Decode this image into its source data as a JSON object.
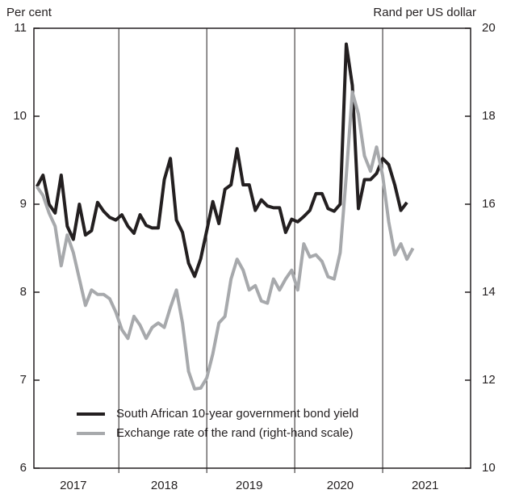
{
  "chart_data": {
    "type": "line",
    "y_label": "Per cent",
    "y2_label": "Rand per US dollar",
    "categories": [
      null,
      null,
      null,
      null,
      null,
      null,
      "2017",
      null,
      null,
      null,
      null,
      null,
      null,
      null,
      null,
      null,
      null,
      null,
      null,
      null,
      null,
      "2018",
      null,
      null,
      null,
      null,
      null,
      null,
      null,
      null,
      null,
      null,
      null,
      null,
      null,
      "2019",
      null,
      null,
      null,
      null,
      null,
      null,
      null,
      null,
      null,
      null,
      null,
      null,
      null,
      null,
      "2020",
      null,
      null,
      null,
      null,
      null,
      null,
      null,
      null,
      null,
      null,
      null,
      null,
      null,
      "2021",
      null,
      null,
      null,
      null,
      null,
      null,
      null
    ],
    "ylim": [
      6,
      11
    ],
    "yticks": [
      6,
      7,
      8,
      9,
      10,
      11
    ],
    "y2lim": [
      10,
      20
    ],
    "y2ticks": [
      10,
      12,
      14,
      16,
      18,
      20
    ],
    "legend": "lower left",
    "series": [
      {
        "name": "South African 10-year government bond yield",
        "color": "#231f20",
        "values": [
          9.2,
          9.33,
          9.0,
          8.9,
          9.33,
          8.75,
          8.6,
          9.0,
          8.65,
          8.7,
          9.02,
          8.92,
          8.85,
          8.82,
          8.88,
          8.75,
          8.67,
          8.88,
          8.76,
          8.73,
          8.73,
          9.28,
          9.52,
          8.82,
          8.68,
          8.33,
          8.18,
          8.38,
          8.7,
          9.03,
          8.78,
          9.17,
          9.22,
          9.63,
          9.22,
          9.22,
          8.93,
          9.05,
          8.98,
          8.96,
          8.96,
          8.68,
          8.83,
          8.8,
          8.86,
          8.93,
          9.12,
          9.12,
          8.95,
          8.92,
          9.0,
          10.82,
          10.35,
          8.95,
          9.28,
          9.28,
          9.35,
          9.52,
          9.45,
          9.22,
          8.93,
          9.02,
          null,
          null,
          null,
          null,
          null,
          null,
          null,
          null,
          null,
          null
        ]
      },
      {
        "name": "Exchange rate of the rand (right-hand scale)",
        "color": "#a7a9ac",
        "axis": "y2",
        "values": [
          16.4,
          16.2,
          15.8,
          15.5,
          14.6,
          15.3,
          14.9,
          14.3,
          13.7,
          14.05,
          13.95,
          13.95,
          13.85,
          13.55,
          13.15,
          12.95,
          13.45,
          13.25,
          12.95,
          13.2,
          13.3,
          13.2,
          13.65,
          14.05,
          13.3,
          12.2,
          11.8,
          11.82,
          12.05,
          12.6,
          13.3,
          13.45,
          14.3,
          14.75,
          14.5,
          14.05,
          14.15,
          13.8,
          13.75,
          14.3,
          14.05,
          14.3,
          14.5,
          14.05,
          15.1,
          14.8,
          14.85,
          14.7,
          14.35,
          14.3,
          14.9,
          16.65,
          18.55,
          18.05,
          17.1,
          16.75,
          17.3,
          16.65,
          15.6,
          14.85,
          15.1,
          14.75,
          15.0,
          null,
          null,
          null,
          null,
          null,
          null,
          null,
          null,
          null
        ]
      }
    ]
  }
}
